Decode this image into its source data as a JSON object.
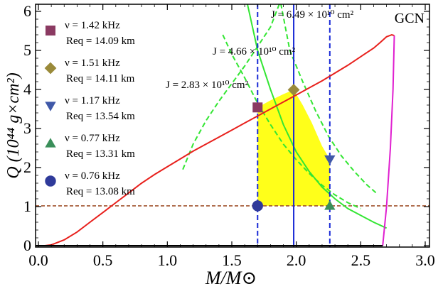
{
  "chart_data": {
    "type": "line",
    "title": "GCN",
    "xlabel_main": "M",
    "xlabel_sub": "⊙",
    "xlabel_text": "M/M⊙",
    "ylabel_text": "Q (10⁴⁴ g×cm²)",
    "xlim": [
      0,
      3.0
    ],
    "ylim": [
      0,
      6.2
    ],
    "x_ticks": [
      "0.0",
      "0.5",
      "1.0",
      "1.5",
      "2.0",
      "2.5",
      "3.0"
    ],
    "x_tick_values": [
      0,
      0.5,
      1.0,
      1.5,
      2.0,
      2.5,
      3.0
    ],
    "y_ticks": [
      "0",
      "1",
      "2",
      "3",
      "4",
      "5",
      "6"
    ],
    "y_tick_values": [
      0,
      1,
      2,
      3,
      4,
      5,
      6
    ],
    "curves": {
      "red": [
        [
          0.05,
          0.0
        ],
        [
          0.1,
          0.02
        ],
        [
          0.2,
          0.15
        ],
        [
          0.3,
          0.35
        ],
        [
          0.4,
          0.6
        ],
        [
          0.5,
          0.85
        ],
        [
          0.6,
          1.1
        ],
        [
          0.7,
          1.35
        ],
        [
          0.8,
          1.6
        ],
        [
          0.9,
          1.82
        ],
        [
          1.0,
          2.02
        ],
        [
          1.1,
          2.22
        ],
        [
          1.2,
          2.42
        ],
        [
          1.3,
          2.6
        ],
        [
          1.4,
          2.78
        ],
        [
          1.5,
          2.96
        ],
        [
          1.6,
          3.14
        ],
        [
          1.7,
          3.32
        ],
        [
          1.8,
          3.5
        ],
        [
          1.9,
          3.68
        ],
        [
          2.0,
          3.86
        ],
        [
          2.1,
          4.04
        ],
        [
          2.2,
          4.22
        ],
        [
          2.3,
          4.42
        ],
        [
          2.4,
          4.62
        ],
        [
          2.5,
          4.84
        ],
        [
          2.6,
          5.06
        ],
        [
          2.65,
          5.2
        ],
        [
          2.7,
          5.35
        ],
        [
          2.74,
          5.4
        ],
        [
          2.76,
          5.38
        ]
      ],
      "magenta": [
        [
          2.67,
          0.0
        ],
        [
          2.7,
          1.0
        ],
        [
          2.73,
          2.5
        ],
        [
          2.75,
          4.0
        ],
        [
          2.76,
          5.38
        ]
      ],
      "green_solid": [
        [
          1.62,
          6.2
        ],
        [
          1.7,
          5.0
        ],
        [
          1.8,
          4.0
        ],
        [
          1.9,
          3.1
        ],
        [
          2.0,
          2.4
        ],
        [
          2.1,
          1.9
        ],
        [
          2.2,
          1.5
        ],
        [
          2.3,
          1.2
        ],
        [
          2.4,
          0.95
        ],
        [
          2.6,
          0.6
        ],
        [
          2.7,
          0.45
        ]
      ],
      "green_dashed_left": [
        [
          1.12,
          1.95
        ],
        [
          1.2,
          2.6
        ],
        [
          1.3,
          3.2
        ],
        [
          1.4,
          3.7
        ],
        [
          1.5,
          4.15
        ],
        [
          1.6,
          4.6
        ],
        [
          1.7,
          5.1
        ],
        [
          1.8,
          5.6
        ],
        [
          1.87,
          6.2
        ]
      ],
      "green_dashed_mid": [
        [
          1.43,
          5.4
        ],
        [
          1.5,
          4.9
        ],
        [
          1.6,
          4.3
        ],
        [
          1.7,
          3.65
        ],
        [
          1.8,
          3.1
        ],
        [
          1.9,
          2.6
        ],
        [
          2.0,
          2.2
        ],
        [
          2.1,
          1.85
        ],
        [
          2.2,
          1.55
        ],
        [
          2.3,
          1.3
        ],
        [
          2.4,
          1.1
        ],
        [
          2.5,
          0.95
        ]
      ],
      "green_dashed_right": [
        [
          1.88,
          6.2
        ],
        [
          1.95,
          5.0
        ],
        [
          2.05,
          4.2
        ],
        [
          2.15,
          3.45
        ],
        [
          2.25,
          2.8
        ],
        [
          2.35,
          2.3
        ],
        [
          2.45,
          1.9
        ],
        [
          2.55,
          1.55
        ],
        [
          2.62,
          1.35
        ]
      ]
    },
    "hline": {
      "y": 1.02,
      "color": "#a0522d"
    },
    "vlines": [
      {
        "x": 1.7,
        "style": "dashed",
        "color": "#1a2bd6"
      },
      {
        "x": 1.98,
        "style": "solid",
        "color": "#1a2bd6"
      },
      {
        "x": 2.26,
        "style": "dashed",
        "color": "#1a2bd6"
      }
    ],
    "shaded_region": [
      [
        1.7,
        1.02
      ],
      [
        1.7,
        3.54
      ],
      [
        1.8,
        3.72
      ],
      [
        1.9,
        3.88
      ],
      [
        1.98,
        3.99
      ],
      [
        2.05,
        3.6
      ],
      [
        2.12,
        3.15
      ],
      [
        2.2,
        2.55
      ],
      [
        2.26,
        2.21
      ],
      [
        2.26,
        1.02
      ]
    ],
    "markers": [
      {
        "name": "square",
        "x": 1.7,
        "y": 3.54,
        "color": "#8b3a62"
      },
      {
        "name": "diamond",
        "x": 1.98,
        "y": 3.99,
        "color": "#9a8a3a"
      },
      {
        "name": "triangle-down",
        "x": 2.26,
        "y": 2.21,
        "color": "#3f58a8"
      },
      {
        "name": "triangle-up",
        "x": 2.26,
        "y": 1.02,
        "color": "#3a8f5a"
      },
      {
        "name": "circle",
        "x": 1.7,
        "y": 1.02,
        "color": "#2f3a9a"
      }
    ],
    "legend": [
      {
        "shape": "square",
        "color": "#8b3a62",
        "nu": "ν = 1.42 kHz",
        "req": "Req = 14.09 km"
      },
      {
        "shape": "diamond",
        "color": "#9a8a3a",
        "nu": "ν = 1.51 kHz",
        "req": "Req = 14.11 km"
      },
      {
        "shape": "triangle-down",
        "color": "#3f58a8",
        "nu": "ν = 1.17 kHz",
        "req": "Req = 13.54 km"
      },
      {
        "shape": "triangle-up",
        "color": "#3a8f5a",
        "nu": "ν = 0.77 kHz",
        "req": "Req = 13.31 km"
      },
      {
        "shape": "circle",
        "color": "#2f3a9a",
        "nu": "ν = 0.76 kHz",
        "req": "Req = 13.08 km"
      }
    ],
    "annotations": [
      "J = 6.49 × 10¹⁰ cm²",
      "J = 4.66 × 10¹⁰ cm²",
      "J = 2.83 × 10¹⁰ cm²"
    ],
    "colors": {
      "red": "#e8201c",
      "magenta": "#e020d0",
      "green": "#33e633",
      "yellow": "#ffff1a",
      "blue": "#1a2bd6",
      "brown": "#a0522d"
    }
  }
}
